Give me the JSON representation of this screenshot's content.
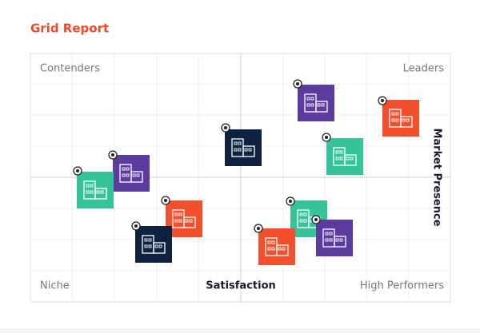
{
  "header": {
    "title": "Grid Report"
  },
  "grid": {
    "quadrants": {
      "top_left": "Contenders",
      "top_right": "Leaders",
      "bottom_left": "Niche",
      "bottom_right": "High Performers"
    },
    "x_axis_label": "Satisfaction",
    "y_axis_label": "Market Presence"
  }
}
